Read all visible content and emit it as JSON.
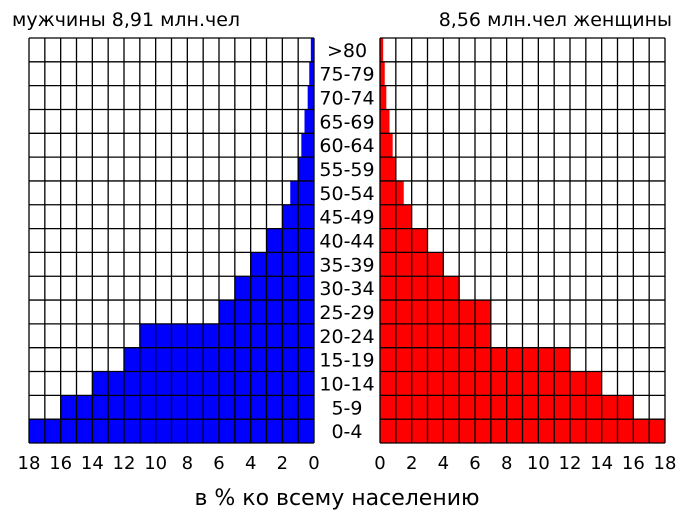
{
  "header": {
    "male_label": "мужчины 8,91 млн.чел",
    "female_label": "8,56 млн.чел женщины"
  },
  "footer": {
    "xlabel": "в % ко всему населению"
  },
  "colors": {
    "male": "#0000ff",
    "female": "#ff0000",
    "grid": "#000000",
    "background": "#ffffff"
  },
  "chart_data": {
    "type": "bar",
    "orientation": "horizontal",
    "categories": [
      "0-4",
      "5-9",
      "10-14",
      "15-19",
      "20-24",
      "25-29",
      "30-34",
      "35-39",
      "40-44",
      "45-49",
      "50-54",
      "55-59",
      "60-64",
      "65-69",
      "70-74",
      "75-79",
      ">80"
    ],
    "series": [
      {
        "name": "мужчины",
        "values": [
          18,
          16,
          14,
          12,
          11,
          6,
          5,
          4,
          3,
          2,
          1.5,
          1,
          0.8,
          0.6,
          0.4,
          0.3,
          0.2
        ]
      },
      {
        "name": "женщины",
        "values": [
          18,
          16,
          14,
          12,
          7,
          7,
          5,
          4,
          3,
          2,
          1.5,
          1,
          0.8,
          0.6,
          0.4,
          0.3,
          0.2
        ]
      }
    ],
    "xticks": [
      "18",
      "16",
      "14",
      "12",
      "10",
      "8",
      "6",
      "4",
      "2",
      "0"
    ],
    "xticks_right": [
      "0",
      "2",
      "4",
      "6",
      "8",
      "10",
      "12",
      "14",
      "16",
      "18"
    ],
    "xlim": [
      0,
      18
    ],
    "xlabel": "в % ко всему населению",
    "grid": true
  }
}
